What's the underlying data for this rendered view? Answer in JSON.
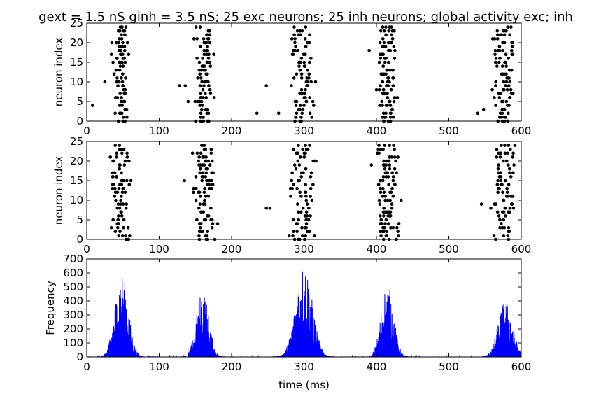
{
  "title": "gext = 1.5 nS ginh = 3.5 nS; 25 exc neurons; 25 inh neurons; global activity exc; inh",
  "chart_data": [
    {
      "type": "scatter",
      "name": "exc-raster",
      "ylabel": "neuron index",
      "xlabel": "",
      "xlim": [
        0,
        600
      ],
      "ylim": [
        0,
        25
      ],
      "xticks": [
        0,
        100,
        200,
        300,
        400,
        500,
        600
      ],
      "yticks": [
        0,
        5,
        10,
        15,
        20,
        25
      ],
      "color": "#000000",
      "bursts": [
        {
          "start": 34,
          "end": 62,
          "min": 0,
          "max": 24
        },
        {
          "start": 148,
          "end": 178,
          "min": 0,
          "max": 24
        },
        {
          "start": 280,
          "end": 318,
          "min": 0,
          "max": 24
        },
        {
          "start": 400,
          "end": 433,
          "min": 0,
          "max": 24
        },
        {
          "start": 557,
          "end": 595,
          "min": 0,
          "max": 24
        }
      ],
      "isolated": [
        [
          8,
          4
        ],
        [
          25,
          10
        ],
        [
          128,
          9
        ],
        [
          136,
          9
        ],
        [
          140,
          5
        ],
        [
          235,
          2
        ],
        [
          248,
          9
        ],
        [
          265,
          2
        ],
        [
          390,
          18
        ],
        [
          540,
          2
        ],
        [
          548,
          3
        ]
      ]
    },
    {
      "type": "scatter",
      "name": "inh-raster",
      "ylabel": "neuron index",
      "xlabel": "",
      "xlim": [
        0,
        600
      ],
      "ylim": [
        0,
        25
      ],
      "xticks": [
        0,
        100,
        200,
        300,
        400,
        500,
        600
      ],
      "yticks": [
        0,
        5,
        10,
        15,
        20,
        25
      ],
      "color": "#000000",
      "bursts": [
        {
          "start": 32,
          "end": 66,
          "min": 0,
          "max": 24
        },
        {
          "start": 146,
          "end": 182,
          "min": 0,
          "max": 24
        },
        {
          "start": 277,
          "end": 322,
          "min": 0,
          "max": 24
        },
        {
          "start": 398,
          "end": 437,
          "min": 0,
          "max": 24
        },
        {
          "start": 558,
          "end": 598,
          "min": 0,
          "max": 24
        }
      ],
      "isolated": [
        [
          135,
          15
        ],
        [
          248,
          8
        ],
        [
          253,
          8
        ],
        [
          393,
          19
        ],
        [
          545,
          9
        ]
      ]
    },
    {
      "type": "line",
      "name": "global-activity",
      "ylabel": "Frequency",
      "xlabel": "time (ms)",
      "xlim": [
        0,
        600
      ],
      "ylim": [
        0,
        700
      ],
      "xticks": [
        0,
        100,
        200,
        300,
        400,
        500,
        600
      ],
      "yticks": [
        0,
        100,
        200,
        300,
        400,
        500,
        600,
        700
      ],
      "color": "#0000ff",
      "bursts": [
        {
          "start": 22,
          "end": 78,
          "center": 48,
          "width": 13,
          "peak": 600
        },
        {
          "start": 140,
          "end": 190,
          "center": 160,
          "width": 12,
          "peak": 480
        },
        {
          "start": 260,
          "end": 340,
          "center": 300,
          "width": 16,
          "peak": 670
        },
        {
          "start": 395,
          "end": 448,
          "center": 415,
          "width": 12,
          "peak": 530
        },
        {
          "start": 548,
          "end": 600,
          "center": 578,
          "width": 14,
          "peak": 400
        }
      ]
    }
  ]
}
